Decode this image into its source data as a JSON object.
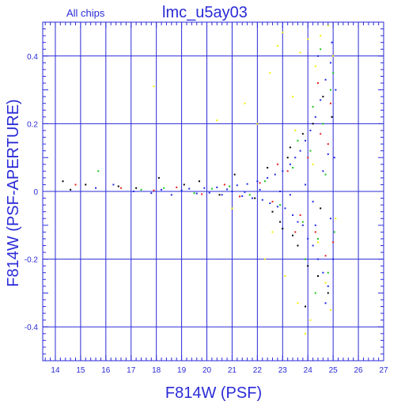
{
  "chart_data": {
    "type": "scatter",
    "title": "lmc_u5ay03",
    "subtitle": "All chips",
    "xlabel": "F814W (PSF)",
    "ylabel": "F814W (PSF-APERTURE)",
    "xlim": [
      13.5,
      27
    ],
    "ylim": [
      -0.5,
      0.5
    ],
    "x_ticks": [
      14,
      15,
      16,
      17,
      18,
      19,
      20,
      21,
      22,
      23,
      24,
      25,
      26,
      27
    ],
    "y_ticks": [
      -0.4,
      -0.2,
      0,
      0.2,
      0.4
    ],
    "y_tick_labels": [
      "-0.4",
      "-0.2",
      "0",
      "0.2",
      "0.4"
    ],
    "grid": true,
    "colors": {
      "axis": "#2a2ad8",
      "blue": "#1e28e6",
      "green": "#16c816",
      "red": "#e61e1e",
      "black": "#000000",
      "yellow": "#f0f000"
    },
    "series": [
      {
        "color_key": "blue",
        "points": [
          [
            15.6,
            0.01
          ],
          [
            16.3,
            0.02
          ],
          [
            17.1,
            0.0
          ],
          [
            17.8,
            -0.005
          ],
          [
            18.2,
            0.005
          ],
          [
            18.6,
            -0.01
          ],
          [
            19.0,
            0.003
          ],
          [
            19.3,
            0.008
          ],
          [
            19.6,
            -0.006
          ],
          [
            19.9,
            0.01
          ],
          [
            20.1,
            -0.004
          ],
          [
            20.4,
            0.012
          ],
          [
            20.6,
            -0.01
          ],
          [
            20.8,
            0.006
          ],
          [
            21.0,
            0.0
          ],
          [
            21.2,
            0.018
          ],
          [
            21.4,
            -0.014
          ],
          [
            21.6,
            0.022
          ],
          [
            21.8,
            -0.02
          ],
          [
            22.0,
            0.03
          ],
          [
            22.2,
            -0.025
          ],
          [
            22.4,
            0.04
          ],
          [
            22.5,
            -0.035
          ],
          [
            22.7,
            0.05
          ],
          [
            22.8,
            -0.045
          ],
          [
            23.0,
            0.06
          ],
          [
            23.1,
            -0.05
          ],
          [
            23.3,
            0.08
          ],
          [
            23.4,
            -0.07
          ],
          [
            23.5,
            0.1
          ],
          [
            23.6,
            -0.09
          ],
          [
            23.7,
            0.12
          ],
          [
            23.8,
            -0.1
          ],
          [
            23.9,
            0.15
          ],
          [
            24.0,
            -0.14
          ],
          [
            24.1,
            0.18
          ],
          [
            24.2,
            -0.16
          ],
          [
            24.3,
            0.22
          ],
          [
            24.4,
            -0.2
          ],
          [
            24.5,
            0.27
          ],
          [
            24.6,
            -0.24
          ],
          [
            24.7,
            0.33
          ],
          [
            24.8,
            -0.28
          ],
          [
            24.9,
            0.38
          ],
          [
            25.0,
            -0.2
          ],
          [
            25.1,
            0.3
          ],
          [
            23.9,
            0.02
          ],
          [
            24.2,
            -0.03
          ],
          [
            24.6,
            0.06
          ],
          [
            24.8,
            0.11
          ],
          [
            24.9,
            -0.08
          ],
          [
            22.9,
            0.0
          ],
          [
            23.3,
            -0.01
          ],
          [
            22.1,
            0.005
          ],
          [
            21.5,
            -0.002
          ],
          [
            24.4,
            0.4
          ],
          [
            24.95,
            0.44
          ],
          [
            24.7,
            -0.33
          ],
          [
            25.05,
            0.1
          ],
          [
            24.3,
            -0.1
          ]
        ]
      },
      {
        "color_key": "green",
        "points": [
          [
            15.7,
            0.06
          ],
          [
            17.4,
            0.005
          ],
          [
            18.3,
            0.01
          ],
          [
            19.5,
            -0.005
          ],
          [
            20.2,
            0.008
          ],
          [
            20.9,
            0.015
          ],
          [
            21.7,
            -0.01
          ],
          [
            22.3,
            0.03
          ],
          [
            22.9,
            -0.04
          ],
          [
            23.4,
            0.07
          ],
          [
            23.8,
            -0.09
          ],
          [
            24.1,
            0.12
          ],
          [
            24.4,
            -0.14
          ],
          [
            24.6,
            0.2
          ],
          [
            24.8,
            -0.24
          ],
          [
            24.9,
            0.3
          ],
          [
            25.0,
            0.35
          ],
          [
            24.5,
            0.42
          ],
          [
            24.3,
            -0.3
          ],
          [
            23.6,
            0.15
          ],
          [
            24.7,
            0.05
          ],
          [
            25.05,
            -0.12
          ],
          [
            24.2,
            0.25
          ],
          [
            23.9,
            -0.2
          ]
        ]
      },
      {
        "color_key": "red",
        "points": [
          [
            14.8,
            0.02
          ],
          [
            16.6,
            0.01
          ],
          [
            17.9,
            0.003
          ],
          [
            18.8,
            0.012
          ],
          [
            19.8,
            -0.008
          ],
          [
            20.7,
            0.02
          ],
          [
            21.3,
            -0.015
          ],
          [
            22.1,
            0.025
          ],
          [
            22.6,
            -0.03
          ],
          [
            23.2,
            0.06
          ],
          [
            23.7,
            -0.07
          ],
          [
            24.0,
            0.1
          ],
          [
            24.3,
            -0.12
          ],
          [
            24.5,
            0.17
          ],
          [
            24.7,
            -0.19
          ],
          [
            24.9,
            0.26
          ],
          [
            25.0,
            -0.15
          ],
          [
            24.4,
            0.32
          ],
          [
            23.5,
            -0.12
          ],
          [
            24.8,
            0.14
          ],
          [
            22.8,
            0.08
          ]
        ]
      },
      {
        "color_key": "black",
        "points": [
          [
            14.3,
            0.03
          ],
          [
            14.6,
            0.005
          ],
          [
            15.2,
            0.02
          ],
          [
            16.5,
            0.015
          ],
          [
            17.2,
            0.01
          ],
          [
            18.1,
            0.04
          ],
          [
            19.1,
            0.02
          ],
          [
            19.7,
            0.03
          ],
          [
            20.5,
            -0.01
          ],
          [
            21.1,
            0.05
          ],
          [
            21.9,
            -0.02
          ],
          [
            22.4,
            0.07
          ],
          [
            22.6,
            -0.06
          ],
          [
            23.0,
            -0.11
          ],
          [
            23.2,
            0.1
          ],
          [
            23.4,
            -0.13
          ],
          [
            23.6,
            -0.16
          ],
          [
            23.8,
            0.17
          ],
          [
            24.0,
            -0.22
          ],
          [
            24.2,
            0.2
          ],
          [
            24.4,
            -0.25
          ],
          [
            24.6,
            0.28
          ],
          [
            24.8,
            -0.3
          ],
          [
            24.95,
            0.22
          ],
          [
            23.9,
            -0.34
          ],
          [
            24.5,
            -0.05
          ],
          [
            22.9,
            -0.09
          ],
          [
            23.3,
            0.13
          ]
        ]
      },
      {
        "color_key": "yellow",
        "points": [
          [
            17.9,
            0.31
          ],
          [
            20.4,
            0.21
          ],
          [
            21.0,
            -0.05
          ],
          [
            21.5,
            0.26
          ],
          [
            22.0,
            0.2
          ],
          [
            22.5,
            0.35
          ],
          [
            22.6,
            -0.12
          ],
          [
            23.0,
            0.47
          ],
          [
            23.1,
            -0.25
          ],
          [
            23.4,
            0.28
          ],
          [
            23.6,
            -0.33
          ],
          [
            23.7,
            0.41
          ],
          [
            23.9,
            -0.42
          ],
          [
            24.0,
            0.45
          ],
          [
            24.1,
            -0.38
          ],
          [
            24.3,
            0.37
          ],
          [
            24.4,
            -0.15
          ],
          [
            24.5,
            0.46
          ],
          [
            24.7,
            -0.27
          ],
          [
            24.8,
            0.49
          ],
          [
            25.0,
            0.4
          ],
          [
            25.1,
            -0.08
          ],
          [
            22.3,
            -0.2
          ],
          [
            23.5,
            0.18
          ],
          [
            24.9,
            -0.35
          ],
          [
            22.8,
            0.43
          ],
          [
            24.2,
            0.08
          ]
        ]
      }
    ]
  }
}
